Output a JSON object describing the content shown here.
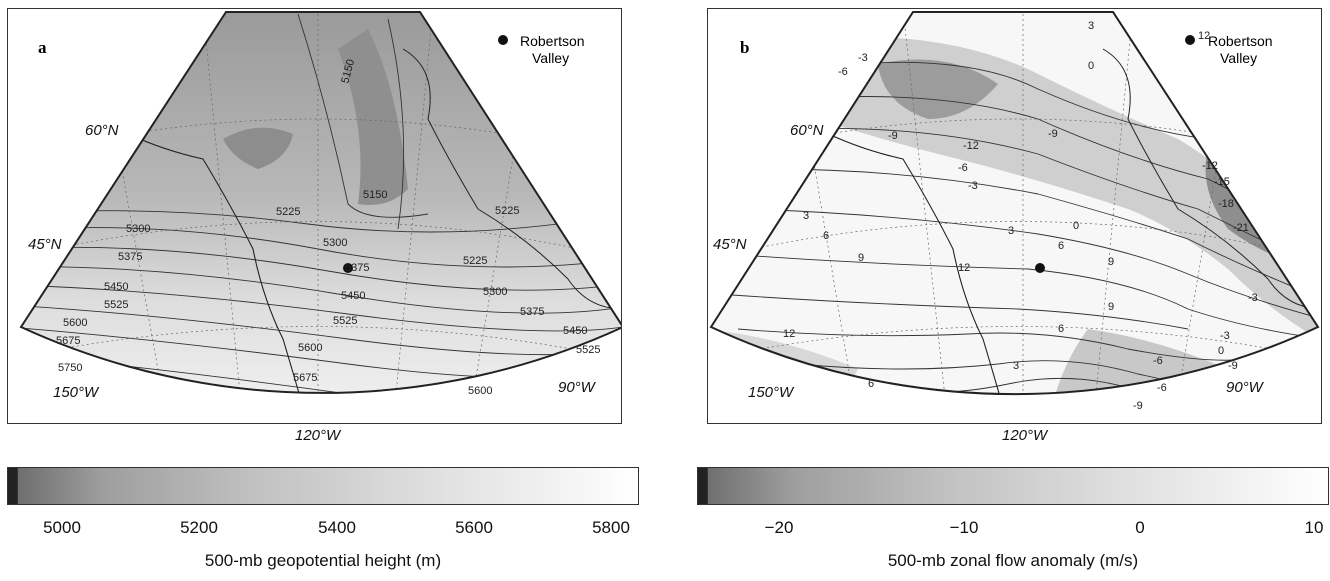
{
  "panels": [
    {
      "letter": "a",
      "legend_label_line1": "Robertson",
      "legend_label_line2": "Valley",
      "lat_labels": [
        "60°N",
        "45°N"
      ],
      "lon_labels": [
        "150°W",
        "90°W"
      ],
      "contour_labels": [
        "5150",
        "5150",
        "5225",
        "5225",
        "5225",
        "5300",
        "5300",
        "5300",
        "5375",
        "5375",
        "5375",
        "5450",
        "5450",
        "5450",
        "5525",
        "5525",
        "5525",
        "5600",
        "5600",
        "5600",
        "5675",
        "5675",
        "5750"
      ],
      "colorbar": {
        "ticks": [
          "5000",
          "5200",
          "5400",
          "5600",
          "5800"
        ],
        "title": "500-mb geopotential height (m)"
      }
    },
    {
      "letter": "b",
      "legend_label_line1": "Robertson",
      "legend_label_line2": "Valley",
      "lat_labels": [
        "60°N",
        "45°N"
      ],
      "lon_labels": [
        "150°W",
        "90°W"
      ],
      "contour_labels": [
        "-3",
        "-6",
        "-9",
        "-12",
        "-9",
        "-6",
        "-3",
        "0",
        "3",
        "6",
        "9",
        "12",
        "12",
        "9",
        "6",
        "3",
        "0",
        "-3",
        "-6",
        "-9",
        "-12",
        "-15",
        "-18",
        "-21",
        "9",
        "6",
        "3",
        "-3",
        "-6",
        "-9",
        "0",
        "3",
        "6",
        "12"
      ],
      "colorbar": {
        "ticks": [
          "−20",
          "−10",
          "0",
          "10"
        ],
        "title": "500-mb zonal flow anomaly (m/s)"
      }
    }
  ],
  "center_lon_label": "120°W"
}
